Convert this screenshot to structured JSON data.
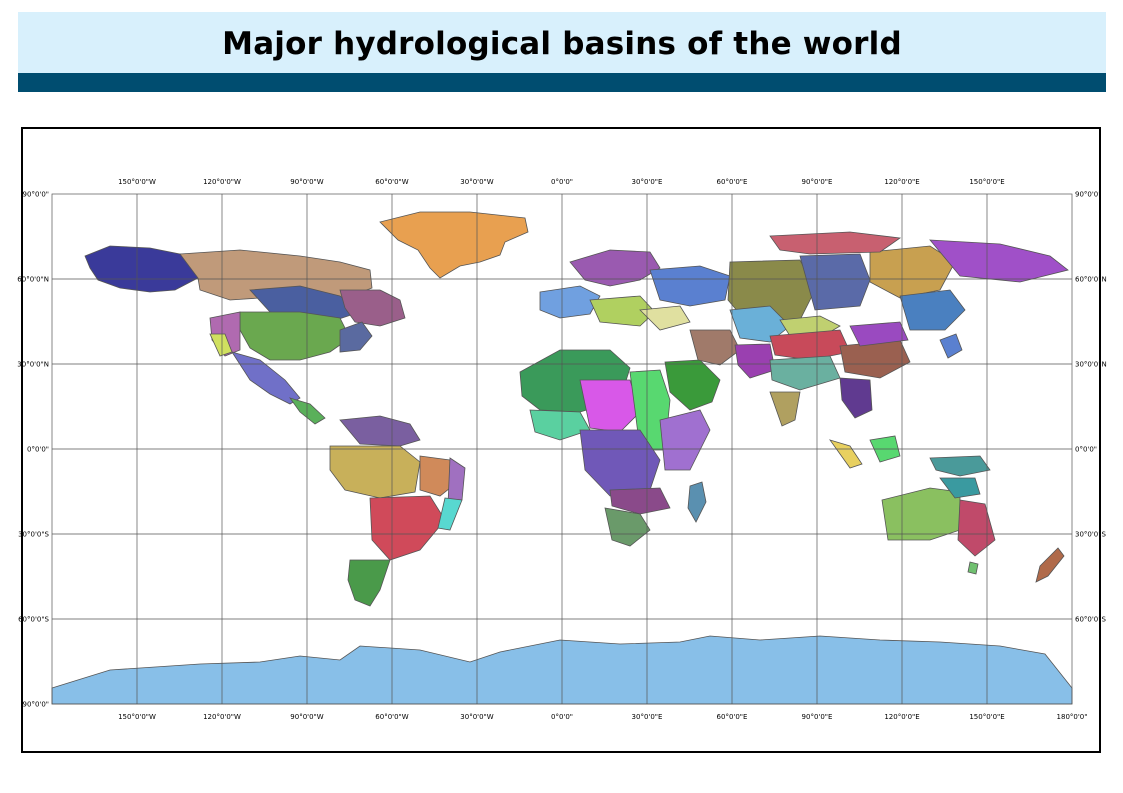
{
  "title": "Major hydrological basins of the world",
  "colors": {
    "title_band": "#d8f0fc",
    "title_bar": "#004d70",
    "antarctica": "#88bfe8",
    "greenland": "#e8a050",
    "grid": "#555555"
  },
  "lon_labels": [
    "150°0'0\"W",
    "120°0'0\"W",
    "90°0'0\"W",
    "60°0'0\"W",
    "30°0'0\"W",
    "0°0'0\"",
    "30°0'0\"E",
    "60°0'0\"E",
    "90°0'0\"E",
    "120°0'0\"E",
    "150°0'0\"E"
  ],
  "lon_label_bottom_extra": "180°0'0\"",
  "lat_labels_left": [
    "90°0'0\"",
    "60°0'0\"N",
    "30°0'0\"N",
    "0°0'0\"",
    "30°0'0\"S",
    "60°0'0\"S",
    "90°0'0\""
  ],
  "lat_labels_right": [
    "90°0'0\"",
    "60°0'0\"N",
    "30°0'0\"N",
    "0°0'0\"",
    "30°0'0\"S",
    "60°0'0\"S"
  ]
}
